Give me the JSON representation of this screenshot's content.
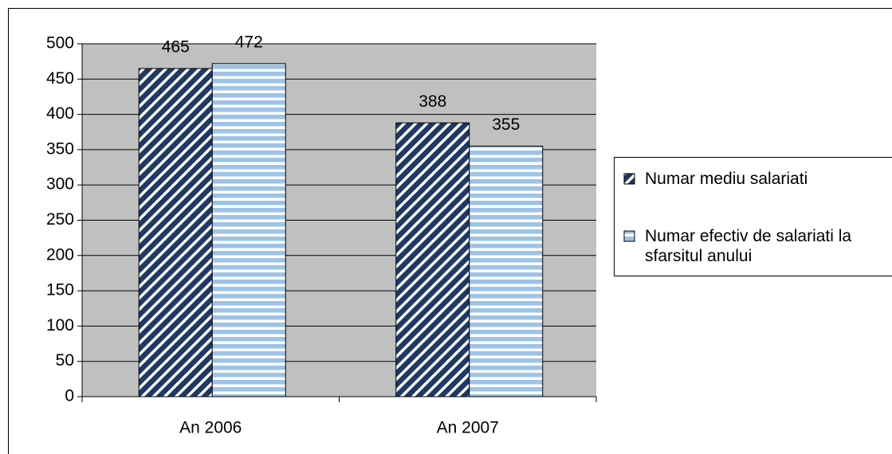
{
  "chart_data": {
    "type": "bar",
    "categories": [
      "An 2006",
      "An 2007"
    ],
    "series": [
      {
        "name": "Numar mediu salariati",
        "color": "#1f3864",
        "pattern": "diagonal",
        "values": [
          465,
          388
        ]
      },
      {
        "name": "Numar efectiv de salariati la sfarsitul anului",
        "color": "#9dc3e6",
        "pattern": "horizontal",
        "values": [
          472,
          355
        ]
      }
    ],
    "ylim": [
      0,
      500
    ],
    "yticks": [
      0,
      50,
      100,
      150,
      200,
      250,
      300,
      350,
      400,
      450,
      500
    ],
    "grid": true,
    "legend": "right",
    "plot_background": "#c0c0c0"
  }
}
